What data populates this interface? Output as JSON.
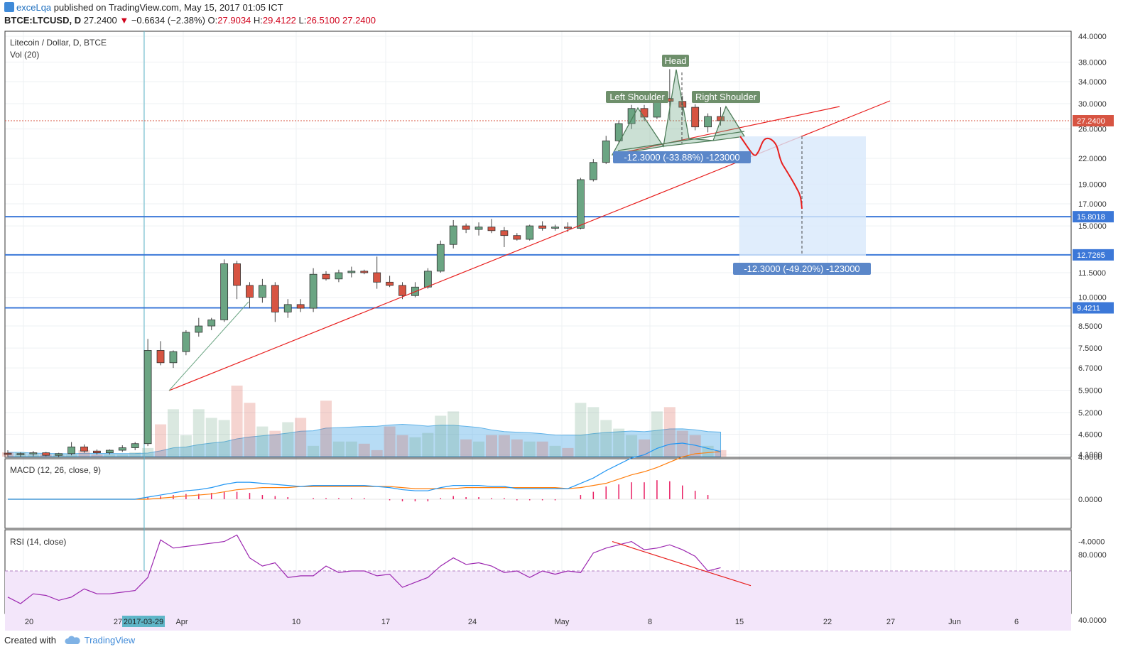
{
  "header": {
    "user": "exceLqa",
    "published_text": "published on TradingView.com, May 15, 2017 01:05 ICT",
    "symbol": "BTCE:LTCUSD, D",
    "last": "27.2400",
    "change": "−0.6634 (−2.38%)",
    "open_label": "O:",
    "open": "27.9034",
    "high_label": "H:",
    "high": "29.4122",
    "low_label": "L:",
    "low": "26.5100",
    "close": "27.2400"
  },
  "main_pane": {
    "title": "Litecoin / Dollar, D, BTCE",
    "vol_label": "Vol (20)"
  },
  "macd_pane": {
    "title": "MACD (12, 26, close, 9)"
  },
  "rsi_pane": {
    "title": "RSI (14, close)"
  },
  "annotations": {
    "head": "Head",
    "left_shoulder": "Left Shoulder",
    "right_shoulder": "Right Shoulder",
    "measure1": "-12.3000 (-33.88%) -123000",
    "measure2": "-12.3000 (-49.20%) -123000"
  },
  "price_badges": [
    "27.2400",
    "15.8018",
    "12.7265",
    "9.4211"
  ],
  "footer": {
    "created_with": "Created with",
    "brand": "TradingView"
  },
  "colors": {
    "up": "#6ba583",
    "down": "#d75442",
    "trend": "#e8201f",
    "support": "#3c78d8",
    "macd": "#2196f3",
    "signal": "#ff7f0e",
    "hist": "#e91e63",
    "rsi": "#9c27b0",
    "rsi_band": "#f3e6fa"
  },
  "chart_data": {
    "type": "candlestick",
    "x_axis_labels": [
      "20",
      "27",
      "2017-03-29",
      "Apr",
      "10",
      "17",
      "24",
      "May",
      "8",
      "15",
      "22",
      "27",
      "Jun",
      "6"
    ],
    "y_axis_labels": [
      "44.0000",
      "38.0000",
      "34.0000",
      "30.0000",
      "26.0000",
      "22.0000",
      "19.0000",
      "17.0000",
      "15.0000",
      "11.5000",
      "10.0000",
      "8.5000",
      "7.5000",
      "6.7000",
      "5.9000",
      "5.2000",
      "4.6000",
      "4.1000"
    ],
    "macd_axis_labels": [
      "4.0000",
      "0.0000",
      "-4.0000"
    ],
    "rsi_axis_labels": [
      "80.0000",
      "40.0000"
    ],
    "horizontal_levels": [
      15.8018,
      12.7265,
      9.4211
    ],
    "last_price": 27.24,
    "candles": [
      {
        "o": 4.13,
        "h": 4.2,
        "l": 4.05,
        "c": 4.1
      },
      {
        "o": 4.1,
        "h": 4.15,
        "l": 4.05,
        "c": 4.12
      },
      {
        "o": 4.12,
        "h": 4.18,
        "l": 4.06,
        "c": 4.14
      },
      {
        "o": 4.14,
        "h": 4.16,
        "l": 4.06,
        "c": 4.08
      },
      {
        "o": 4.08,
        "h": 4.14,
        "l": 4.04,
        "c": 4.12
      },
      {
        "o": 4.12,
        "h": 4.4,
        "l": 4.08,
        "c": 4.28
      },
      {
        "o": 4.28,
        "h": 4.34,
        "l": 4.14,
        "c": 4.18
      },
      {
        "o": 4.18,
        "h": 4.22,
        "l": 4.1,
        "c": 4.14
      },
      {
        "o": 4.14,
        "h": 4.22,
        "l": 4.1,
        "c": 4.2
      },
      {
        "o": 4.2,
        "h": 4.32,
        "l": 4.16,
        "c": 4.26
      },
      {
        "o": 4.26,
        "h": 4.4,
        "l": 4.2,
        "c": 4.36
      },
      {
        "o": 4.36,
        "h": 7.9,
        "l": 4.3,
        "c": 7.4
      },
      {
        "o": 7.4,
        "h": 7.8,
        "l": 6.8,
        "c": 6.9
      },
      {
        "o": 6.9,
        "h": 7.4,
        "l": 6.7,
        "c": 7.35
      },
      {
        "o": 7.35,
        "h": 8.3,
        "l": 7.2,
        "c": 8.2
      },
      {
        "o": 8.2,
        "h": 8.9,
        "l": 8.0,
        "c": 8.5
      },
      {
        "o": 8.5,
        "h": 8.9,
        "l": 8.3,
        "c": 8.8
      },
      {
        "o": 8.8,
        "h": 12.4,
        "l": 8.7,
        "c": 12.1
      },
      {
        "o": 12.1,
        "h": 12.3,
        "l": 9.9,
        "c": 10.7
      },
      {
        "o": 10.7,
        "h": 10.9,
        "l": 9.4,
        "c": 10.0
      },
      {
        "o": 10.0,
        "h": 11.1,
        "l": 9.7,
        "c": 10.7
      },
      {
        "o": 10.7,
        "h": 10.9,
        "l": 8.7,
        "c": 9.2
      },
      {
        "o": 9.2,
        "h": 9.9,
        "l": 8.9,
        "c": 9.6
      },
      {
        "o": 9.6,
        "h": 9.9,
        "l": 9.2,
        "c": 9.4
      },
      {
        "o": 9.4,
        "h": 11.8,
        "l": 9.2,
        "c": 11.4
      },
      {
        "o": 11.4,
        "h": 11.6,
        "l": 11.0,
        "c": 11.1
      },
      {
        "o": 11.1,
        "h": 11.7,
        "l": 10.9,
        "c": 11.5
      },
      {
        "o": 11.5,
        "h": 11.9,
        "l": 11.2,
        "c": 11.6
      },
      {
        "o": 11.6,
        "h": 11.7,
        "l": 11.4,
        "c": 11.5
      },
      {
        "o": 11.5,
        "h": 12.6,
        "l": 10.5,
        "c": 10.9
      },
      {
        "o": 10.9,
        "h": 11.3,
        "l": 10.6,
        "c": 10.7
      },
      {
        "o": 10.7,
        "h": 10.9,
        "l": 9.9,
        "c": 10.1
      },
      {
        "o": 10.1,
        "h": 10.9,
        "l": 10.0,
        "c": 10.6
      },
      {
        "o": 10.6,
        "h": 11.8,
        "l": 10.5,
        "c": 11.6
      },
      {
        "o": 11.6,
        "h": 13.8,
        "l": 11.5,
        "c": 13.5
      },
      {
        "o": 13.5,
        "h": 15.5,
        "l": 13.2,
        "c": 15.0
      },
      {
        "o": 15.0,
        "h": 15.2,
        "l": 14.4,
        "c": 14.7
      },
      {
        "o": 14.7,
        "h": 15.3,
        "l": 14.2,
        "c": 14.9
      },
      {
        "o": 14.9,
        "h": 15.6,
        "l": 14.4,
        "c": 14.6
      },
      {
        "o": 14.6,
        "h": 14.9,
        "l": 13.3,
        "c": 14.2
      },
      {
        "o": 14.2,
        "h": 14.4,
        "l": 13.8,
        "c": 13.9
      },
      {
        "o": 13.9,
        "h": 15.1,
        "l": 13.8,
        "c": 15.0
      },
      {
        "o": 15.0,
        "h": 15.4,
        "l": 14.6,
        "c": 14.8
      },
      {
        "o": 14.8,
        "h": 15.1,
        "l": 14.6,
        "c": 14.9
      },
      {
        "o": 14.9,
        "h": 15.3,
        "l": 14.5,
        "c": 14.8
      },
      {
        "o": 14.8,
        "h": 19.7,
        "l": 14.7,
        "c": 19.5
      },
      {
        "o": 19.5,
        "h": 21.9,
        "l": 19.3,
        "c": 21.5
      },
      {
        "o": 21.5,
        "h": 25.0,
        "l": 21.3,
        "c": 24.3
      },
      {
        "o": 24.3,
        "h": 27.3,
        "l": 24.0,
        "c": 26.8
      },
      {
        "o": 26.8,
        "h": 29.8,
        "l": 26.0,
        "c": 29.2
      },
      {
        "o": 29.2,
        "h": 29.8,
        "l": 27.2,
        "c": 27.8
      },
      {
        "o": 27.8,
        "h": 31.6,
        "l": 27.5,
        "c": 30.9
      },
      {
        "o": 30.9,
        "h": 36.5,
        "l": 27.3,
        "c": 30.4
      },
      {
        "o": 30.4,
        "h": 31.4,
        "l": 28.0,
        "c": 29.4
      },
      {
        "o": 29.4,
        "h": 29.9,
        "l": 25.8,
        "c": 26.3
      },
      {
        "o": 26.3,
        "h": 28.4,
        "l": 25.5,
        "c": 27.9
      },
      {
        "o": 27.9,
        "h": 29.4,
        "l": 26.5,
        "c": 27.24
      }
    ],
    "volume": [
      2,
      2,
      1,
      1,
      1,
      1,
      3,
      1,
      1,
      1,
      2,
      4,
      15,
      22,
      10,
      22,
      18,
      17,
      33,
      25,
      14,
      12,
      16,
      18,
      5,
      26,
      7,
      7,
      6,
      3,
      14,
      10,
      9,
      11,
      19,
      21,
      8,
      7,
      10,
      10,
      8,
      7,
      7,
      5,
      4,
      25,
      23,
      17,
      13,
      10,
      8,
      21,
      23,
      12,
      10,
      5,
      3
    ],
    "macd": [
      0.0,
      0.0,
      0.0,
      0.0,
      0.0,
      0.0,
      0.0,
      0.0,
      0.0,
      0.0,
      0.0,
      0.2,
      0.4,
      0.6,
      0.8,
      0.9,
      1.1,
      1.4,
      1.6,
      1.6,
      1.5,
      1.4,
      1.3,
      1.2,
      1.3,
      1.3,
      1.3,
      1.3,
      1.3,
      1.2,
      1.1,
      0.9,
      0.8,
      0.8,
      1.1,
      1.3,
      1.3,
      1.3,
      1.2,
      1.2,
      1.0,
      1.0,
      1.0,
      1.0,
      1.0,
      1.5,
      2.0,
      2.7,
      3.3,
      3.9,
      4.2,
      4.8,
      5.2,
      5.3,
      5.1,
      4.8,
      4.5
    ],
    "signal": [
      0.0,
      0.0,
      0.0,
      0.0,
      0.0,
      0.0,
      0.0,
      0.0,
      0.0,
      0.0,
      0.0,
      0.0,
      0.1,
      0.2,
      0.3,
      0.4,
      0.5,
      0.7,
      0.9,
      1.0,
      1.1,
      1.1,
      1.1,
      1.2,
      1.2,
      1.2,
      1.2,
      1.2,
      1.2,
      1.2,
      1.2,
      1.1,
      1.0,
      1.0,
      1.0,
      1.0,
      1.1,
      1.1,
      1.1,
      1.1,
      1.1,
      1.1,
      1.1,
      1.1,
      1.0,
      1.1,
      1.3,
      1.5,
      1.9,
      2.3,
      2.6,
      3.0,
      3.5,
      4.0,
      4.3,
      4.4,
      4.5
    ],
    "rsi": [
      54,
      50,
      56,
      55,
      52,
      54,
      59,
      56,
      56,
      57,
      58,
      66,
      89,
      84,
      85,
      86,
      87,
      88,
      92,
      78,
      73,
      75,
      66,
      67,
      67,
      73,
      69,
      70,
      70,
      67,
      68,
      60,
      63,
      66,
      73,
      78,
      74,
      75,
      73,
      69,
      70,
      66,
      70,
      68,
      70,
      69,
      81,
      84,
      86,
      88,
      83,
      84,
      86,
      83,
      79,
      70,
      72
    ]
  }
}
